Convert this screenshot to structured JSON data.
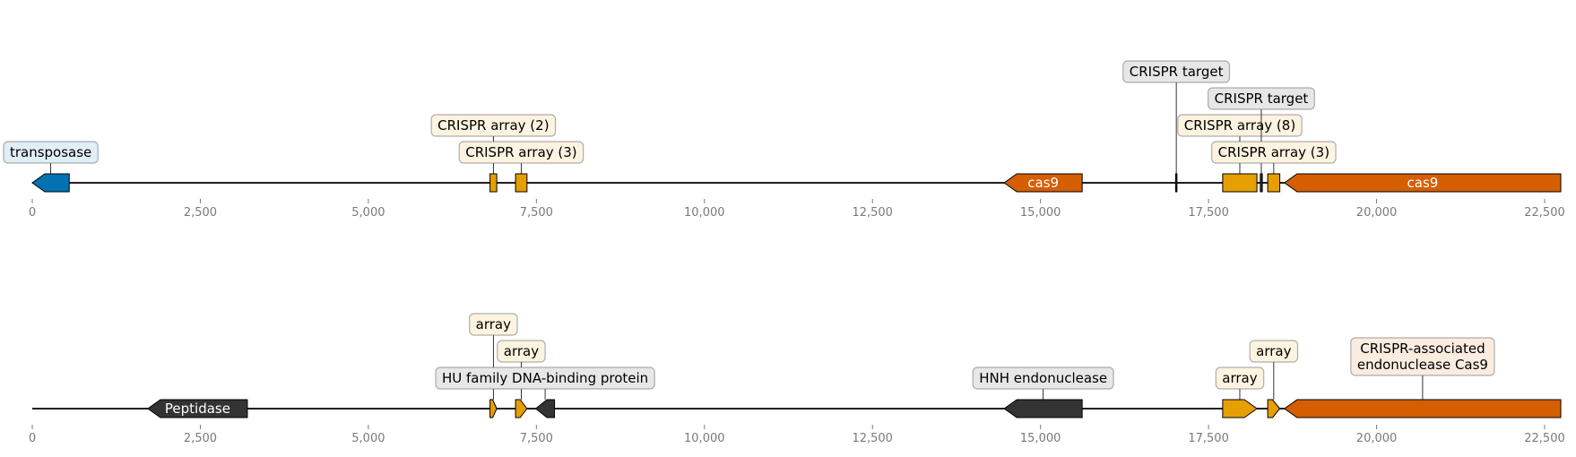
{
  "axis": {
    "min": 0,
    "max": 23000,
    "tick_values": [
      0,
      2500,
      5000,
      7500,
      10000,
      12500,
      15000,
      17500,
      20000,
      22500
    ],
    "tick_labels": [
      "0",
      "2,500",
      "5,000",
      "7,500",
      "10,000",
      "12,500",
      "15,000",
      "17,500",
      "20,000",
      "22,500"
    ]
  },
  "colors": {
    "blue": "#0072b2",
    "orange": "#e69f00",
    "vermillion": "#d55e00",
    "dark": "#333333",
    "backbone": "#000000",
    "tick": "#7a7a7a"
  },
  "tracks": [
    {
      "name": "track-top",
      "start": 0,
      "end": 22740,
      "features": [
        {
          "start": 0,
          "end": 550,
          "strand": -1,
          "color": "blue",
          "inner_label": "",
          "label": "transposase",
          "label_level": 1
        },
        {
          "start": 6810,
          "end": 6910,
          "strand": 0,
          "color": "orange",
          "inner_label": "",
          "label": "CRISPR array (2)",
          "label_level": 2
        },
        {
          "start": 7190,
          "end": 7360,
          "strand": 0,
          "color": "orange",
          "inner_label": "",
          "label": "CRISPR array (3)",
          "label_level": 1
        },
        {
          "start": 14460,
          "end": 15620,
          "strand": -1,
          "color": "vermillion",
          "inner_label": "cas9",
          "label": "",
          "label_level": 0
        },
        {
          "start": 17010,
          "end": 17030,
          "strand": 0,
          "color": "dark",
          "inner_label": "",
          "label": "CRISPR target",
          "label_level": 4
        },
        {
          "start": 17710,
          "end": 18220,
          "strand": 0,
          "color": "orange",
          "inner_label": "",
          "label": "CRISPR array (8)",
          "label_level": 2
        },
        {
          "start": 18270,
          "end": 18300,
          "strand": 0,
          "color": "dark",
          "inner_label": "",
          "label": "CRISPR target",
          "label_level": 3
        },
        {
          "start": 18380,
          "end": 18560,
          "strand": 0,
          "color": "orange",
          "inner_label": "",
          "label": "CRISPR array (3)",
          "label_level": 1
        },
        {
          "start": 18630,
          "end": 22740,
          "strand": -1,
          "color": "vermillion",
          "inner_label": "cas9",
          "label": "",
          "label_level": 0
        }
      ]
    },
    {
      "name": "track-bottom",
      "start": 0,
      "end": 22740,
      "features": [
        {
          "start": 1720,
          "end": 3200,
          "strand": -1,
          "color": "dark",
          "inner_label": "Peptidase",
          "label": "",
          "label_level": 0
        },
        {
          "start": 6810,
          "end": 6910,
          "strand": 1,
          "color": "orange",
          "inner_label": "",
          "label": "array",
          "label_level": 3
        },
        {
          "start": 7190,
          "end": 7360,
          "strand": 1,
          "color": "orange",
          "inner_label": "",
          "label": "array",
          "label_level": 2
        },
        {
          "start": 7490,
          "end": 7770,
          "strand": -1,
          "color": "dark",
          "inner_label": "",
          "label": "HU family DNA-binding protein",
          "label_level": 1
        },
        {
          "start": 14460,
          "end": 15620,
          "strand": -1,
          "color": "dark",
          "inner_label": "",
          "label": "HNH endonuclease",
          "label_level": 1
        },
        {
          "start": 17710,
          "end": 18220,
          "strand": 1,
          "color": "orange",
          "inner_label": "",
          "label": "array",
          "label_level": 1
        },
        {
          "start": 18380,
          "end": 18560,
          "strand": 1,
          "color": "orange",
          "inner_label": "",
          "label": "array",
          "label_level": 2
        },
        {
          "start": 18630,
          "end": 22740,
          "strand": -1,
          "color": "vermillion",
          "inner_label": "",
          "label": "CRISPR-associated\nendonuclease Cas9",
          "label_level": 1.5
        }
      ]
    }
  ]
}
